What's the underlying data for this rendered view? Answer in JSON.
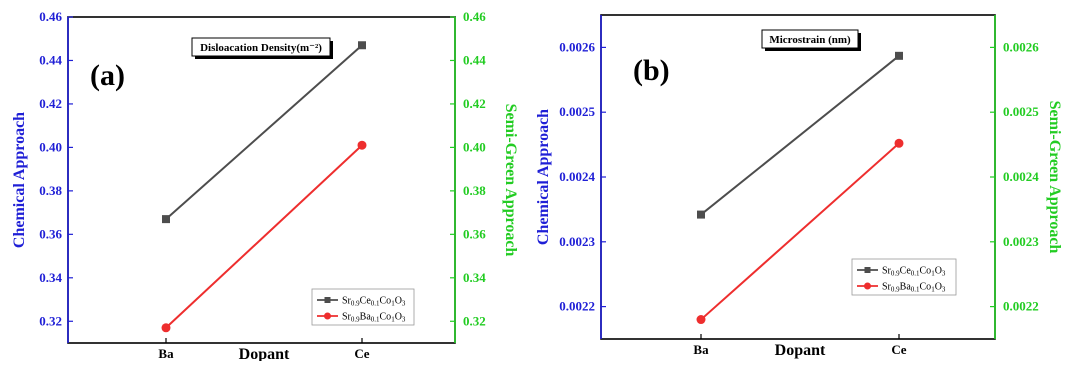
{
  "chart_data": [
    {
      "type": "line",
      "panel_label": "(a)",
      "title": "Disloacation Density(m⁻²)",
      "xlabel": "Dopant",
      "ylabel": "Chemical Approach",
      "y2label": "Semi-Green Approach",
      "categories": [
        "Ba",
        "Ce"
      ],
      "ylim": [
        0.31,
        0.46
      ],
      "y_ticks": [
        "0.32",
        "0.34",
        "0.36",
        "0.38",
        "0.40",
        "0.42",
        "0.44",
        "0.46"
      ],
      "y2_ticks": [
        "0.32",
        "0.34",
        "0.36",
        "0.38",
        "0.40",
        "0.42",
        "0.44",
        "0.46"
      ],
      "legend_position": "bottom-right",
      "series": [
        {
          "name": "Sr0.9Ce0.1Co1O3",
          "base": "Sr",
          "s1": "0.9",
          "dop": "Ce",
          "s2": "0.1",
          "end": "Co",
          "s3": "1",
          "ox": "O",
          "s4": "3",
          "color": "#4d4d4d",
          "marker": "square",
          "values": [
            0.367,
            0.447
          ]
        },
        {
          "name": "Sr0.9Ba0.1Co1O3",
          "base": "Sr",
          "s1": "0.9",
          "dop": "Ba",
          "s2": "0.1",
          "end": "Co",
          "s3": "1",
          "ox": "O",
          "s4": "3",
          "color": "#ee2e2e",
          "marker": "circle",
          "values": [
            0.317,
            0.401
          ]
        }
      ]
    },
    {
      "type": "line",
      "panel_label": "(b)",
      "title": "Microstrain (nm)",
      "xlabel": "Dopant",
      "ylabel": "Chemical Approach",
      "y2label": "Semi-Green Approach",
      "categories": [
        "Ba",
        "Ce"
      ],
      "ylim": [
        0.00215,
        0.00265
      ],
      "y_ticks": [
        "0.0022",
        "0.0023",
        "0.0024",
        "0.0025",
        "0.0026"
      ],
      "y2_ticks": [
        "0.0022",
        "0.0023",
        "0.0024",
        "0.0025",
        "0.0026"
      ],
      "legend_position": "bottom-right",
      "series": [
        {
          "name": "Sr0.9Ce0.1Co1O3",
          "base": "Sr",
          "s1": "0.9",
          "dop": "Ce",
          "s2": "0.1",
          "end": "Co",
          "s3": "1",
          "ox": "O",
          "s4": "3",
          "color": "#4d4d4d",
          "marker": "square",
          "values": [
            0.002342,
            0.002587
          ]
        },
        {
          "name": "Sr0.9Ba0.1Co1O3",
          "base": "Sr",
          "s1": "0.9",
          "dop": "Ba",
          "s2": "0.1",
          "end": "Co",
          "s3": "1",
          "ox": "O",
          "s4": "3",
          "color": "#ee2e2e",
          "marker": "circle",
          "values": [
            0.00218,
            0.002452
          ]
        }
      ]
    }
  ]
}
